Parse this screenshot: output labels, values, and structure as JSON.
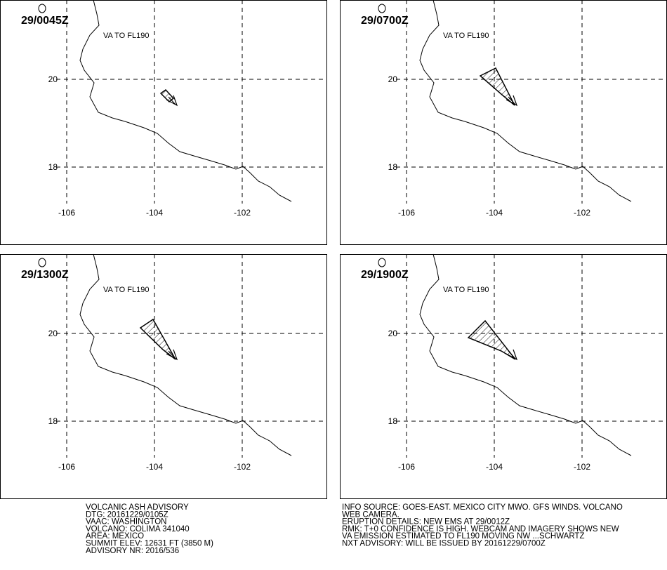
{
  "panels": [
    {
      "time": "29/0045Z",
      "label": "VA TO FL190",
      "lon_labels": [
        "-106",
        "-104",
        "-102"
      ],
      "lat_labels": [
        "20",
        "18"
      ]
    },
    {
      "time": "29/0700Z",
      "label": "VA TO FL190",
      "lon_labels": [
        "-106",
        "-104",
        "-102"
      ],
      "lat_labels": [
        "20",
        "18"
      ]
    },
    {
      "time": "29/1300Z",
      "label": "VA TO FL190",
      "lon_labels": [
        "-106",
        "-104",
        "-102"
      ],
      "lat_labels": [
        "20",
        "18"
      ]
    },
    {
      "time": "29/1900Z",
      "label": "VA TO FL190",
      "lon_labels": [
        "-106",
        "-104",
        "-102"
      ],
      "lat_labels": [
        "20",
        "18"
      ]
    }
  ],
  "left_info": [
    "VOLCANIC ASH ADVISORY",
    "DTG: 20161229/0105Z",
    "VAAC: WASHINGTON",
    "VOLCANO: COLIMA 341040",
    "AREA: MEXICO",
    "SUMMIT ELEV: 12631 FT (3850 M)",
    "ADVISORY NR: 2016/536"
  ],
  "right_info": [
    "INFO SOURCE: GOES-EAST. MEXICO CITY MWO. GFS WINDS. VOLCANO",
    "WEB CAMERA.",
    "ERUPTION DETAILS: NEW EMS AT 29/0012Z",
    "RMK: T+0 CONFIDENCE IS HIGH. WEBCAM AND IMAGERY SHOWS NEW",
    "VA EMISSION ESTIMATED TO FL190 MOVING NW ...SCHWARTZ",
    "NXT ADVISORY: WILL BE ISSUED BY 20161229/0700Z"
  ]
}
